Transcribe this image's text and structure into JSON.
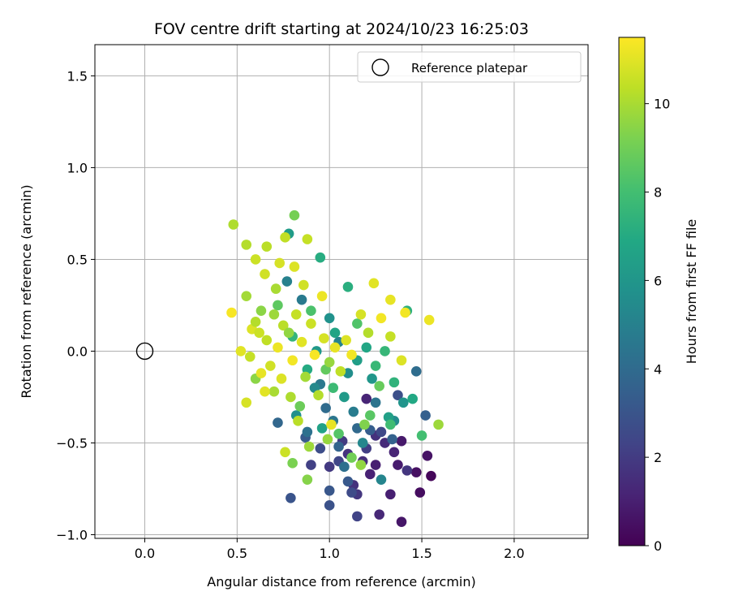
{
  "chart_data": {
    "type": "scatter",
    "title": "FOV centre drift starting at 2024/10/23 16:25:03",
    "xlabel": "Angular distance from reference (arcmin)",
    "ylabel": "Rotation from reference (arcmin)",
    "xlim": [
      -0.27,
      2.4
    ],
    "ylim": [
      -1.02,
      1.67
    ],
    "xticks": [
      0.0,
      0.5,
      1.0,
      1.5,
      2.0
    ],
    "xtick_labels": [
      "0.0",
      "0.5",
      "1.0",
      "1.5",
      "2.0"
    ],
    "yticks": [
      -1.0,
      -0.5,
      0.0,
      0.5,
      1.0,
      1.5
    ],
    "ytick_labels": [
      "−1.0",
      "−0.5",
      "0.0",
      "0.5",
      "1.0",
      "1.5"
    ],
    "grid": true,
    "legend": {
      "position": "top-right",
      "entries": [
        "Reference platepar"
      ]
    },
    "reference_point": {
      "x": 0.0,
      "y": 0.0,
      "marker": "open-circle"
    },
    "colorbar": {
      "label": "Hours from first FF file",
      "colormap": "viridis",
      "range": [
        0,
        11.5
      ],
      "ticks": [
        0,
        2,
        4,
        6,
        8,
        10
      ],
      "tick_labels": [
        "0",
        "2",
        "4",
        "6",
        "8",
        "10"
      ]
    },
    "points": [
      {
        "x": 1.55,
        "y": -0.68,
        "c": 0.2
      },
      {
        "x": 1.49,
        "y": -0.77,
        "c": 0.4
      },
      {
        "x": 1.47,
        "y": -0.66,
        "c": 0.5
      },
      {
        "x": 1.39,
        "y": -0.93,
        "c": 0.7
      },
      {
        "x": 1.53,
        "y": -0.57,
        "c": 0.6
      },
      {
        "x": 1.39,
        "y": -0.49,
        "c": 0.8
      },
      {
        "x": 1.37,
        "y": -0.62,
        "c": 0.9
      },
      {
        "x": 1.25,
        "y": -0.62,
        "c": 1.0
      },
      {
        "x": 1.33,
        "y": -0.78,
        "c": 1.0
      },
      {
        "x": 1.22,
        "y": -0.67,
        "c": 1.1
      },
      {
        "x": 1.35,
        "y": -0.55,
        "c": 1.2
      },
      {
        "x": 1.2,
        "y": -0.26,
        "c": 1.2
      },
      {
        "x": 1.27,
        "y": -0.89,
        "c": 1.3
      },
      {
        "x": 1.3,
        "y": -0.5,
        "c": 1.4
      },
      {
        "x": 1.18,
        "y": -0.6,
        "c": 1.5
      },
      {
        "x": 1.13,
        "y": -0.73,
        "c": 1.6
      },
      {
        "x": 1.25,
        "y": -0.46,
        "c": 1.6
      },
      {
        "x": 1.1,
        "y": -0.56,
        "c": 1.7
      },
      {
        "x": 1.42,
        "y": -0.65,
        "c": 1.8
      },
      {
        "x": 1.15,
        "y": -0.78,
        "c": 1.8
      },
      {
        "x": 1.0,
        "y": -0.63,
        "c": 1.9
      },
      {
        "x": 1.07,
        "y": -0.49,
        "c": 2.0
      },
      {
        "x": 1.2,
        "y": -0.53,
        "c": 2.1
      },
      {
        "x": 0.9,
        "y": -0.62,
        "c": 2.2
      },
      {
        "x": 1.15,
        "y": -0.9,
        "c": 2.3
      },
      {
        "x": 1.05,
        "y": -0.6,
        "c": 2.4
      },
      {
        "x": 1.28,
        "y": -0.44,
        "c": 2.5
      },
      {
        "x": 1.12,
        "y": -0.77,
        "c": 2.6
      },
      {
        "x": 0.95,
        "y": -0.53,
        "c": 2.7
      },
      {
        "x": 1.37,
        "y": -0.24,
        "c": 2.8
      },
      {
        "x": 1.0,
        "y": -0.84,
        "c": 2.9
      },
      {
        "x": 0.79,
        "y": -0.8,
        "c": 3.0
      },
      {
        "x": 1.0,
        "y": -0.76,
        "c": 3.1
      },
      {
        "x": 1.1,
        "y": -0.71,
        "c": 3.2
      },
      {
        "x": 0.87,
        "y": -0.47,
        "c": 3.3
      },
      {
        "x": 1.22,
        "y": -0.43,
        "c": 3.4
      },
      {
        "x": 1.52,
        "y": -0.35,
        "c": 3.5
      },
      {
        "x": 1.34,
        "y": -0.48,
        "c": 3.6
      },
      {
        "x": 1.05,
        "y": -0.52,
        "c": 3.7
      },
      {
        "x": 0.72,
        "y": -0.39,
        "c": 3.8
      },
      {
        "x": 1.15,
        "y": -0.42,
        "c": 3.9
      },
      {
        "x": 0.98,
        "y": -0.31,
        "c": 4.0
      },
      {
        "x": 1.47,
        "y": -0.11,
        "c": 4.1
      },
      {
        "x": 1.08,
        "y": -0.63,
        "c": 4.2
      },
      {
        "x": 0.88,
        "y": -0.44,
        "c": 4.3
      },
      {
        "x": 1.25,
        "y": -0.28,
        "c": 4.4
      },
      {
        "x": 1.02,
        "y": -0.38,
        "c": 4.5
      },
      {
        "x": 0.95,
        "y": -0.18,
        "c": 4.6
      },
      {
        "x": 0.85,
        "y": 0.28,
        "c": 4.7
      },
      {
        "x": 1.13,
        "y": -0.33,
        "c": 4.8
      },
      {
        "x": 0.77,
        "y": 0.38,
        "c": 5.0
      },
      {
        "x": 1.05,
        "y": 0.05,
        "c": 5.1
      },
      {
        "x": 1.28,
        "y": -0.7,
        "c": 5.2
      },
      {
        "x": 1.18,
        "y": -0.5,
        "c": 5.3
      },
      {
        "x": 0.92,
        "y": -0.2,
        "c": 5.4
      },
      {
        "x": 1.35,
        "y": -0.38,
        "c": 5.5
      },
      {
        "x": 1.1,
        "y": -0.12,
        "c": 5.6
      },
      {
        "x": 0.82,
        "y": -0.35,
        "c": 5.7
      },
      {
        "x": 1.0,
        "y": 0.18,
        "c": 5.8
      },
      {
        "x": 1.4,
        "y": -0.28,
        "c": 5.9
      },
      {
        "x": 1.23,
        "y": -0.15,
        "c": 6.0
      },
      {
        "x": 0.93,
        "y": 0.0,
        "c": 6.1
      },
      {
        "x": 1.08,
        "y": -0.25,
        "c": 6.2
      },
      {
        "x": 0.78,
        "y": 0.64,
        "c": 6.3
      },
      {
        "x": 1.15,
        "y": -0.05,
        "c": 6.4
      },
      {
        "x": 1.32,
        "y": -0.36,
        "c": 6.5
      },
      {
        "x": 0.96,
        "y": -0.42,
        "c": 6.6
      },
      {
        "x": 1.03,
        "y": 0.1,
        "c": 6.7
      },
      {
        "x": 1.2,
        "y": 0.02,
        "c": 6.8
      },
      {
        "x": 1.45,
        "y": -0.26,
        "c": 6.9
      },
      {
        "x": 0.88,
        "y": -0.1,
        "c": 7.0
      },
      {
        "x": 0.95,
        "y": 0.51,
        "c": 7.1
      },
      {
        "x": 1.1,
        "y": 0.35,
        "c": 7.2
      },
      {
        "x": 1.42,
        "y": 0.22,
        "c": 7.3
      },
      {
        "x": 1.35,
        "y": -0.17,
        "c": 7.4
      },
      {
        "x": 0.8,
        "y": 0.08,
        "c": 7.5
      },
      {
        "x": 1.3,
        "y": 0.0,
        "c": 7.6
      },
      {
        "x": 1.25,
        "y": -0.08,
        "c": 7.7
      },
      {
        "x": 1.02,
        "y": -0.2,
        "c": 7.8
      },
      {
        "x": 1.33,
        "y": -0.4,
        "c": 7.9
      },
      {
        "x": 1.5,
        "y": -0.46,
        "c": 8.0
      },
      {
        "x": 0.9,
        "y": 0.22,
        "c": 8.2
      },
      {
        "x": 1.15,
        "y": 0.15,
        "c": 8.3
      },
      {
        "x": 1.05,
        "y": -0.45,
        "c": 8.4
      },
      {
        "x": 1.22,
        "y": -0.35,
        "c": 8.5
      },
      {
        "x": 0.72,
        "y": 0.25,
        "c": 8.6
      },
      {
        "x": 0.98,
        "y": -0.1,
        "c": 8.7
      },
      {
        "x": 1.27,
        "y": -0.19,
        "c": 8.8
      },
      {
        "x": 0.84,
        "y": -0.3,
        "c": 8.9
      },
      {
        "x": 1.12,
        "y": -0.58,
        "c": 9.0
      },
      {
        "x": 0.81,
        "y": 0.74,
        "c": 9.1
      },
      {
        "x": 0.8,
        "y": -0.61,
        "c": 9.2
      },
      {
        "x": 1.19,
        "y": -0.4,
        "c": 9.3
      },
      {
        "x": 0.88,
        "y": -0.7,
        "c": 9.4
      },
      {
        "x": 0.6,
        "y": -0.15,
        "c": 9.5
      },
      {
        "x": 1.17,
        "y": -0.62,
        "c": 9.6
      },
      {
        "x": 0.99,
        "y": -0.48,
        "c": 9.7
      },
      {
        "x": 1.59,
        "y": -0.4,
        "c": 9.8
      },
      {
        "x": 0.55,
        "y": 0.3,
        "c": 9.9
      },
      {
        "x": 0.7,
        "y": -0.22,
        "c": 10.0
      },
      {
        "x": 0.48,
        "y": 0.69,
        "c": 10.1
      },
      {
        "x": 0.55,
        "y": 0.58,
        "c": 10.2
      },
      {
        "x": 0.66,
        "y": 0.57,
        "c": 10.3
      },
      {
        "x": 0.76,
        "y": 0.62,
        "c": 10.4
      },
      {
        "x": 0.88,
        "y": 0.61,
        "c": 10.5
      },
      {
        "x": 0.6,
        "y": 0.5,
        "c": 10.6
      },
      {
        "x": 0.65,
        "y": 0.42,
        "c": 10.7
      },
      {
        "x": 0.73,
        "y": 0.48,
        "c": 10.8
      },
      {
        "x": 0.81,
        "y": 0.46,
        "c": 10.9
      },
      {
        "x": 1.24,
        "y": 0.37,
        "c": 11.0
      },
      {
        "x": 1.33,
        "y": 0.28,
        "c": 11.1
      },
      {
        "x": 1.54,
        "y": 0.17,
        "c": 11.2
      },
      {
        "x": 1.41,
        "y": 0.21,
        "c": 11.3
      },
      {
        "x": 0.47,
        "y": 0.21,
        "c": 11.4
      },
      {
        "x": 0.52,
        "y": 0.0,
        "c": 11.0
      },
      {
        "x": 0.55,
        "y": -0.28,
        "c": 10.8
      },
      {
        "x": 0.58,
        "y": 0.12,
        "c": 10.9
      },
      {
        "x": 0.62,
        "y": 0.1,
        "c": 10.6
      },
      {
        "x": 0.6,
        "y": 0.16,
        "c": 10.2
      },
      {
        "x": 0.63,
        "y": -0.12,
        "c": 11.1
      },
      {
        "x": 0.66,
        "y": 0.06,
        "c": 10.4
      },
      {
        "x": 0.68,
        "y": -0.08,
        "c": 10.7
      },
      {
        "x": 0.7,
        "y": 0.2,
        "c": 9.8
      },
      {
        "x": 0.72,
        "y": 0.02,
        "c": 11.2
      },
      {
        "x": 0.75,
        "y": 0.14,
        "c": 10.3
      },
      {
        "x": 0.74,
        "y": -0.15,
        "c": 10.9
      },
      {
        "x": 0.78,
        "y": 0.1,
        "c": 9.6
      },
      {
        "x": 0.8,
        "y": -0.05,
        "c": 11.3
      },
      {
        "x": 0.82,
        "y": 0.2,
        "c": 10.5
      },
      {
        "x": 0.79,
        "y": -0.25,
        "c": 10.1
      },
      {
        "x": 0.85,
        "y": 0.05,
        "c": 11.0
      },
      {
        "x": 0.87,
        "y": -0.14,
        "c": 9.9
      },
      {
        "x": 0.9,
        "y": 0.15,
        "c": 10.6
      },
      {
        "x": 0.92,
        "y": -0.02,
        "c": 11.4
      },
      {
        "x": 0.94,
        "y": -0.24,
        "c": 10.2
      },
      {
        "x": 0.97,
        "y": 0.07,
        "c": 10.8
      },
      {
        "x": 1.0,
        "y": -0.06,
        "c": 9.7
      },
      {
        "x": 1.03,
        "y": 0.02,
        "c": 11.1
      },
      {
        "x": 1.06,
        "y": -0.11,
        "c": 10.4
      },
      {
        "x": 1.09,
        "y": 0.06,
        "c": 10.9
      },
      {
        "x": 1.12,
        "y": -0.02,
        "c": 11.3
      },
      {
        "x": 0.71,
        "y": 0.34,
        "c": 10.0
      },
      {
        "x": 0.86,
        "y": 0.36,
        "c": 10.7
      },
      {
        "x": 0.96,
        "y": 0.3,
        "c": 11.2
      },
      {
        "x": 0.63,
        "y": 0.22,
        "c": 9.5
      },
      {
        "x": 0.57,
        "y": -0.03,
        "c": 10.5
      },
      {
        "x": 0.65,
        "y": -0.22,
        "c": 11.0
      },
      {
        "x": 0.83,
        "y": -0.38,
        "c": 10.3
      },
      {
        "x": 0.76,
        "y": -0.55,
        "c": 10.6
      },
      {
        "x": 0.89,
        "y": -0.52,
        "c": 9.8
      },
      {
        "x": 1.01,
        "y": -0.4,
        "c": 11.1
      },
      {
        "x": 1.17,
        "y": 0.2,
        "c": 10.8
      },
      {
        "x": 1.21,
        "y": 0.1,
        "c": 10.2
      },
      {
        "x": 1.39,
        "y": -0.05,
        "c": 10.9
      },
      {
        "x": 1.33,
        "y": 0.08,
        "c": 10.5
      },
      {
        "x": 1.28,
        "y": 0.18,
        "c": 11.3
      }
    ]
  }
}
